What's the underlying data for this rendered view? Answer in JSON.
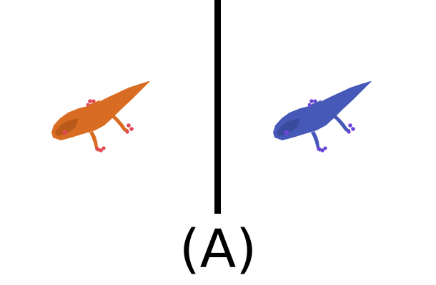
{
  "caption": {
    "label": "(A)"
  },
  "panels": [
    {
      "subject": "gecko-silhouette",
      "color": "#D86C22",
      "accent_color": "#E04A54",
      "shade_color": "#B95A1B"
    },
    {
      "subject": "gecko-silhouette",
      "color": "#4759B8",
      "accent_color": "#6A45D6",
      "shade_color": "#3A4A9D"
    }
  ]
}
